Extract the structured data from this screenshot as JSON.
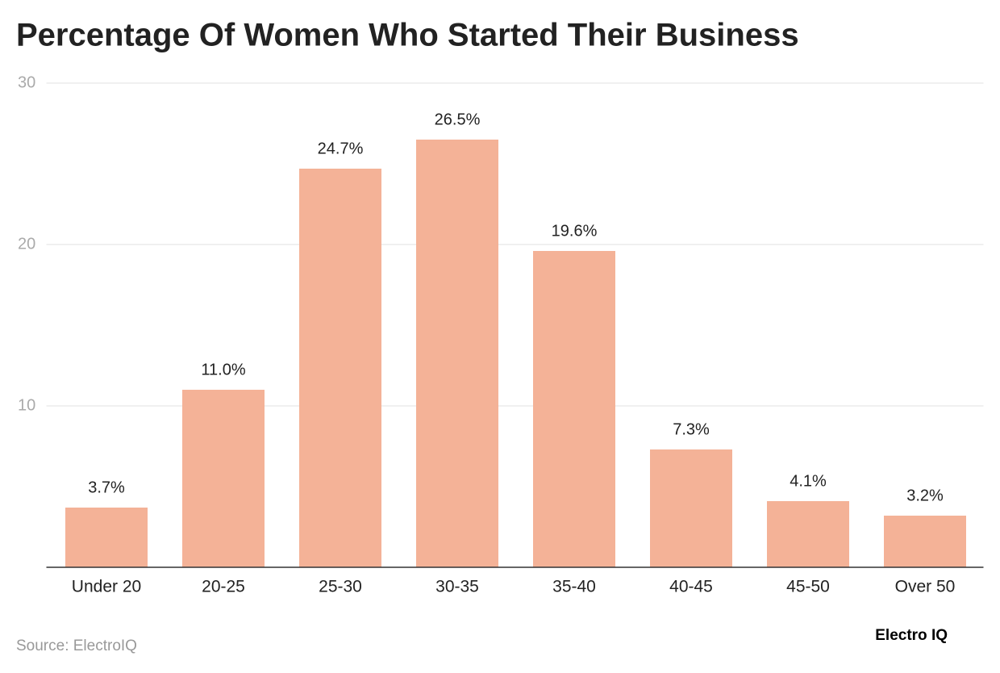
{
  "chart_data": {
    "type": "bar",
    "title": "Percentage Of Women Who Started Their Business",
    "categories": [
      "Under 20",
      "20-25",
      "25-30",
      "30-35",
      "35-40",
      "40-45",
      "45-50",
      "Over 50"
    ],
    "values": [
      3.7,
      11.0,
      24.7,
      26.5,
      19.6,
      7.3,
      4.1,
      3.2
    ],
    "value_labels": [
      "3.7%",
      "11.0%",
      "24.7%",
      "26.5%",
      "19.6%",
      "7.3%",
      "4.1%",
      "3.2%"
    ],
    "color": "#f4b297",
    "ylim": [
      0,
      30
    ],
    "yticks": [
      10,
      20,
      30
    ],
    "grid": true,
    "source": "Source: ElectroIQ",
    "logo": "Electro IQ"
  }
}
